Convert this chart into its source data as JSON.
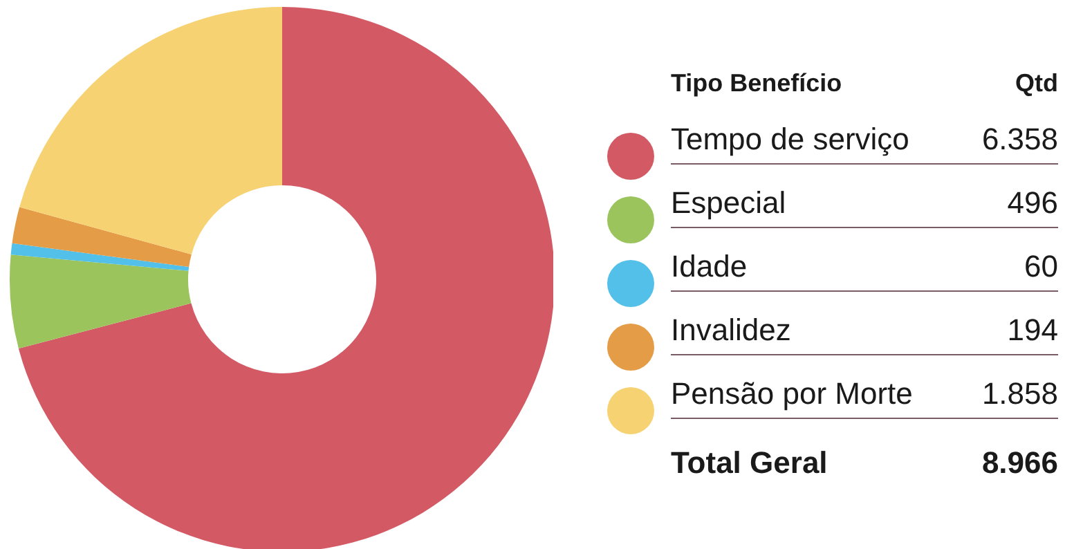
{
  "chart_data": {
    "type": "donut",
    "legend_title": "Tipo Benefício",
    "legend": "right",
    "categories": [
      "Tempo de serviço",
      "Especial",
      "Idade",
      "Invalidez",
      "Pensão por Morte"
    ],
    "values": [
      6358,
      496,
      60,
      194,
      1858
    ],
    "value_labels": [
      "6.358",
      "496",
      "60",
      "194",
      "1.858"
    ],
    "colors": [
      "#d35a65",
      "#9bc45c",
      "#52c0e8",
      "#e59c46",
      "#f7d272"
    ],
    "annotations": [
      "Qtd",
      "Total Geral",
      "8.966"
    ]
  }
}
